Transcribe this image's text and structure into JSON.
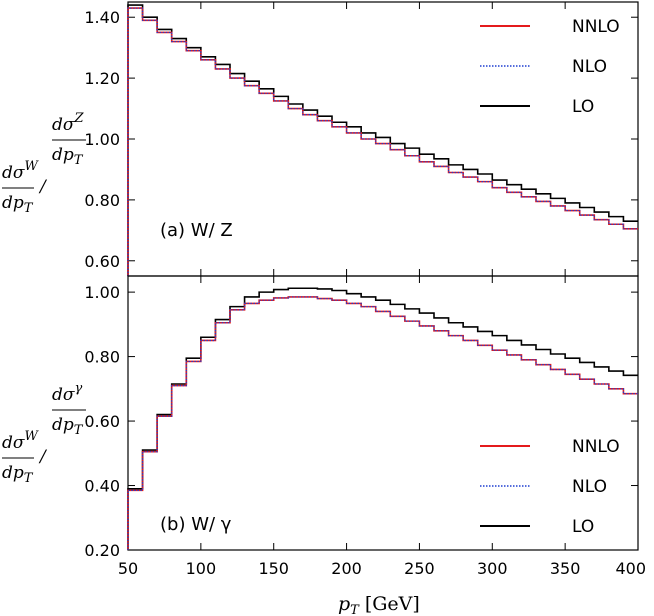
{
  "chart_data": [
    {
      "type": "line",
      "panel_label": "(a) W/ Z",
      "ylabel": {
        "num_a": "dσ",
        "num_a_sup": "W",
        "den_a": "dp",
        "den_a_sub": "T",
        "num_b": "dσ",
        "num_b_sup": "Z",
        "den_b": "dp",
        "den_b_sub": "T"
      },
      "xlim": [
        50,
        400
      ],
      "ylim": [
        0.55,
        1.45
      ],
      "yticks": [
        "0.60",
        "0.80",
        "1.00",
        "1.20",
        "1.40"
      ],
      "ytick_values": [
        0.6,
        0.8,
        1.0,
        1.2,
        1.4
      ],
      "grid": false,
      "legend": "top-right",
      "bin_edges": [
        50,
        60,
        70,
        80,
        90,
        100,
        110,
        120,
        130,
        140,
        150,
        160,
        170,
        180,
        190,
        200,
        210,
        220,
        230,
        240,
        250,
        260,
        270,
        280,
        290,
        300,
        310,
        320,
        330,
        340,
        350,
        360,
        370,
        380,
        390,
        400
      ],
      "series": [
        {
          "name": "NNLO",
          "color": "#e41a1c",
          "style": "solid",
          "values": [
            1.43,
            1.39,
            1.35,
            1.32,
            1.29,
            1.26,
            1.23,
            1.2,
            1.175,
            1.15,
            1.125,
            1.1,
            1.08,
            1.06,
            1.04,
            1.02,
            1.0,
            0.985,
            0.965,
            0.945,
            0.925,
            0.91,
            0.89,
            0.875,
            0.86,
            0.84,
            0.825,
            0.81,
            0.795,
            0.78,
            0.765,
            0.75,
            0.735,
            0.72,
            0.705
          ]
        },
        {
          "name": "NLO",
          "color": "#1f3fd1",
          "style": "dotted",
          "values": [
            1.43,
            1.39,
            1.35,
            1.32,
            1.29,
            1.26,
            1.23,
            1.2,
            1.175,
            1.15,
            1.125,
            1.1,
            1.08,
            1.06,
            1.04,
            1.02,
            1.0,
            0.985,
            0.965,
            0.945,
            0.925,
            0.91,
            0.89,
            0.875,
            0.86,
            0.84,
            0.825,
            0.81,
            0.795,
            0.78,
            0.765,
            0.75,
            0.735,
            0.72,
            0.705
          ]
        },
        {
          "name": "LO",
          "color": "#000000",
          "style": "solid",
          "values": [
            1.44,
            1.4,
            1.36,
            1.33,
            1.3,
            1.27,
            1.245,
            1.215,
            1.19,
            1.165,
            1.14,
            1.115,
            1.095,
            1.075,
            1.055,
            1.04,
            1.02,
            1.005,
            0.985,
            0.97,
            0.95,
            0.935,
            0.915,
            0.9,
            0.885,
            0.865,
            0.85,
            0.835,
            0.82,
            0.805,
            0.79,
            0.775,
            0.76,
            0.745,
            0.73
          ]
        }
      ]
    },
    {
      "type": "line",
      "panel_label": "(b) W/ γ",
      "xlabel": {
        "main": "p",
        "sub": "T",
        "unit": "[GeV]"
      },
      "ylabel": {
        "num_a": "dσ",
        "num_a_sup": "W",
        "den_a": "dp",
        "den_a_sub": "T",
        "num_b": "dσ",
        "num_b_sup": "γ",
        "den_b": "dp",
        "den_b_sub": "T"
      },
      "xlim": [
        50,
        400
      ],
      "ylim": [
        0.2,
        1.05
      ],
      "xticks": [
        "50",
        "100",
        "150",
        "200",
        "250",
        "300",
        "350",
        "400"
      ],
      "xtick_values": [
        50,
        100,
        150,
        200,
        250,
        300,
        350,
        400
      ],
      "yticks": [
        "0.20",
        "0.40",
        "0.60",
        "0.80",
        "1.00"
      ],
      "ytick_values": [
        0.2,
        0.4,
        0.6,
        0.8,
        1.0
      ],
      "grid": false,
      "legend": "bottom-right",
      "bin_edges": [
        50,
        60,
        70,
        80,
        90,
        100,
        110,
        120,
        130,
        140,
        150,
        160,
        170,
        180,
        190,
        200,
        210,
        220,
        230,
        240,
        250,
        260,
        270,
        280,
        290,
        300,
        310,
        320,
        330,
        340,
        350,
        360,
        370,
        380,
        390,
        400
      ],
      "series": [
        {
          "name": "NNLO",
          "color": "#e41a1c",
          "style": "solid",
          "values": [
            0.385,
            0.505,
            0.615,
            0.71,
            0.785,
            0.85,
            0.905,
            0.945,
            0.965,
            0.975,
            0.982,
            0.985,
            0.985,
            0.98,
            0.975,
            0.965,
            0.955,
            0.94,
            0.925,
            0.91,
            0.895,
            0.88,
            0.865,
            0.85,
            0.835,
            0.82,
            0.805,
            0.79,
            0.775,
            0.76,
            0.745,
            0.73,
            0.715,
            0.7,
            0.685
          ]
        },
        {
          "name": "NLO",
          "color": "#1f3fd1",
          "style": "dotted",
          "values": [
            0.385,
            0.505,
            0.615,
            0.71,
            0.785,
            0.85,
            0.905,
            0.945,
            0.965,
            0.975,
            0.982,
            0.985,
            0.985,
            0.98,
            0.975,
            0.965,
            0.955,
            0.94,
            0.925,
            0.91,
            0.895,
            0.88,
            0.865,
            0.85,
            0.835,
            0.82,
            0.805,
            0.79,
            0.775,
            0.76,
            0.745,
            0.73,
            0.715,
            0.7,
            0.685
          ]
        },
        {
          "name": "LO",
          "color": "#000000",
          "style": "solid",
          "values": [
            0.39,
            0.51,
            0.62,
            0.715,
            0.795,
            0.86,
            0.915,
            0.955,
            0.985,
            1.0,
            1.008,
            1.012,
            1.012,
            1.01,
            1.005,
            0.995,
            0.985,
            0.975,
            0.962,
            0.948,
            0.935,
            0.92,
            0.905,
            0.892,
            0.878,
            0.865,
            0.85,
            0.836,
            0.822,
            0.808,
            0.795,
            0.782,
            0.768,
            0.755,
            0.742
          ]
        }
      ]
    }
  ]
}
